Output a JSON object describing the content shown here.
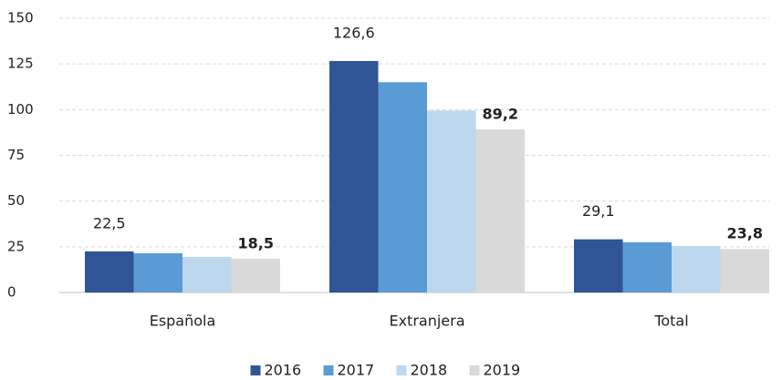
{
  "chart_data": {
    "type": "bar",
    "categories": [
      "Española",
      "Extranjera",
      "Total"
    ],
    "series": [
      {
        "name": "2016",
        "color": "#2f5597",
        "values": [
          22.5,
          126.6,
          29.1
        ],
        "value_labels": [
          "22,5",
          "126,6",
          "29,1"
        ]
      },
      {
        "name": "2017",
        "color": "#5b9bd5",
        "values": [
          21.5,
          115,
          27.5
        ]
      },
      {
        "name": "2018",
        "color": "#bdd7ee",
        "values": [
          19.5,
          99.5,
          25.5
        ]
      },
      {
        "name": "2019",
        "color": "#d9d9d9",
        "values": [
          18.5,
          89.2,
          23.8
        ],
        "value_labels": [
          "18,5",
          "89,2",
          "23,8"
        ]
      }
    ],
    "ylim": [
      0,
      150
    ],
    "yticks": [
      0,
      25,
      50,
      75,
      100,
      125,
      150
    ],
    "grid": true,
    "legend": "bottom"
  }
}
